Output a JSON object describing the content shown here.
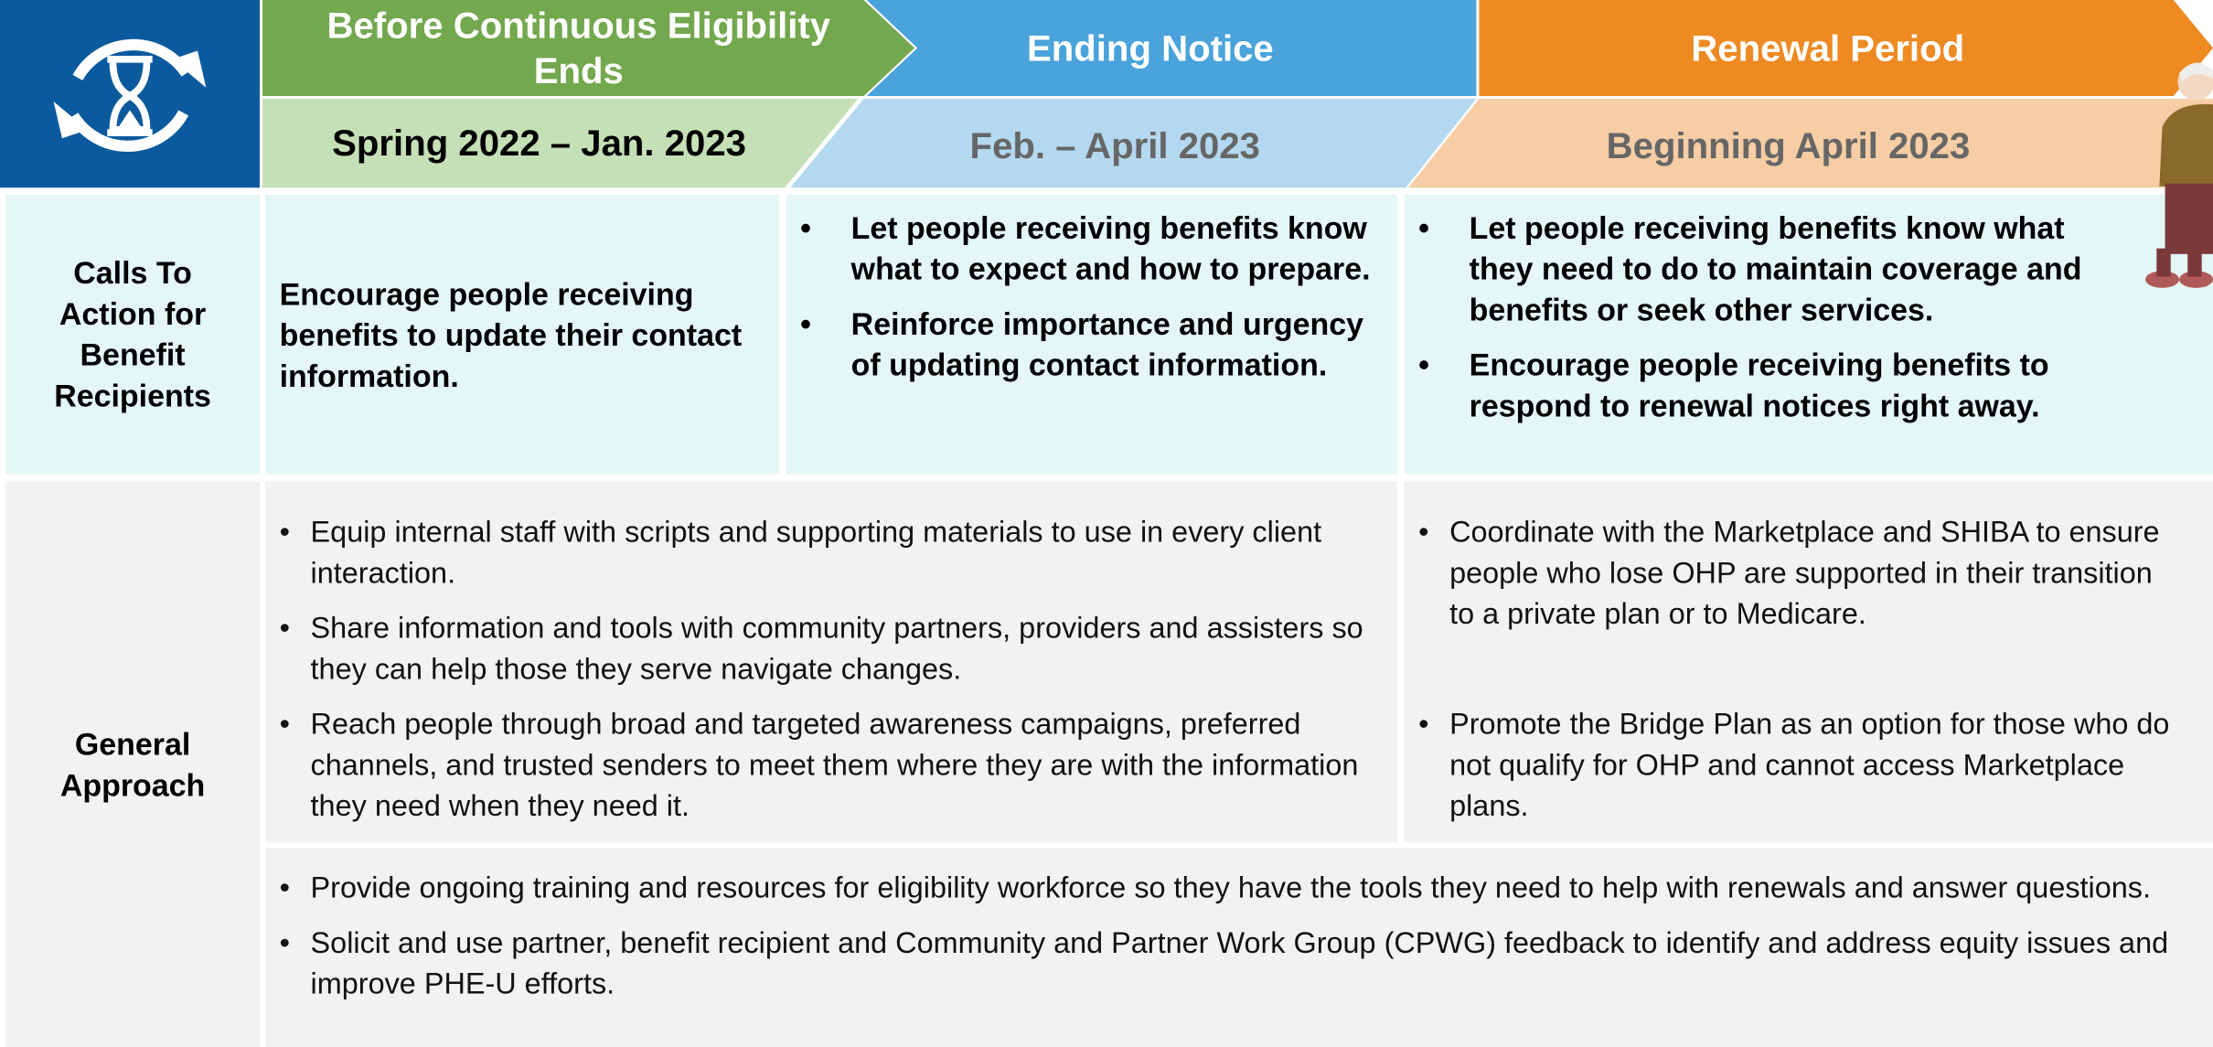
{
  "header": {
    "phases": [
      {
        "title": "Before Continuous Eligibility Ends",
        "period": "Spring 2022 – Jan. 2023"
      },
      {
        "title": "Ending Notice",
        "period": "Feb. – April 2023"
      },
      {
        "title": "Renewal Period",
        "period": "Beginning April 2023"
      }
    ]
  },
  "calls_to_action": {
    "label": "Calls To Action for Benefit Recipients",
    "before": "Encourage people receiving benefits to update their contact information.",
    "ending": [
      "Let people receiving benefits know what to expect and how to prepare.",
      "Reinforce importance and urgency of updating contact information."
    ],
    "renewal": [
      "Let people receiving benefits know what they need to do to maintain coverage and benefits or seek other services.",
      "Encourage people receiving benefits to respond to renewal notices right away."
    ]
  },
  "general_approach": {
    "label": "General Approach",
    "left": [
      "Equip internal staff with scripts and supporting materials to use in every client interaction.",
      "Share information and tools with community partners, providers and assisters so they can help those they serve navigate changes.",
      "Reach people through broad and targeted awareness campaigns, preferred channels, and trusted senders to meet them where they are with the information they need when they need it."
    ],
    "right": [
      "Coordinate with the Marketplace and SHIBA to ensure people who lose OHP are supported in their transition to a private plan or to Medicare.",
      "Promote the Bridge Plan as an option for those who do not qualify for OHP and cannot access Marketplace plans."
    ],
    "bottom": [
      "Provide ongoing training and resources for eligibility workforce so they have the tools they need to help with renewals and answer questions.",
      "Solicit and use partner, benefit recipient and Community and Partner Work Group (CPWG) feedback to identify and address equity issues and improve PHE-U efforts."
    ]
  }
}
